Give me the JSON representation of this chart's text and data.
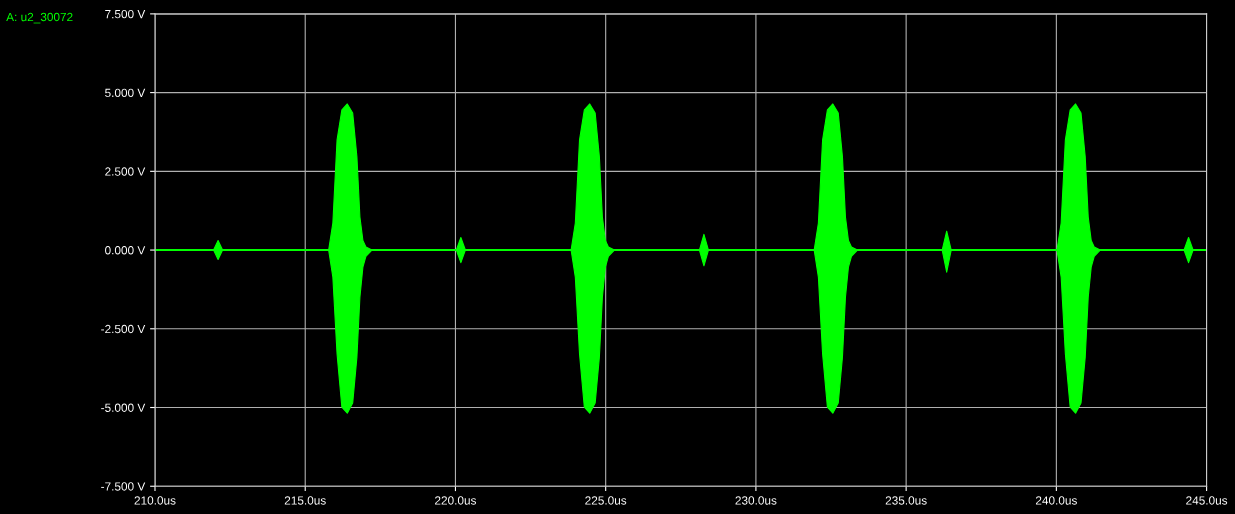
{
  "chart_data": {
    "type": "line",
    "title": "A: u2_30072",
    "x": [
      210,
      211.95,
      212.1,
      212.25,
      215.78,
      215.92,
      216.06,
      216.22,
      216.4,
      216.58,
      216.72,
      216.82,
      216.92,
      217.02,
      217.22,
      220.03,
      220.18,
      220.33,
      223.85,
      223.99,
      224.13,
      224.29,
      224.47,
      224.65,
      224.79,
      224.89,
      224.99,
      225.09,
      225.29,
      228.12,
      228.27,
      228.42,
      231.94,
      232.08,
      232.22,
      232.38,
      232.56,
      232.74,
      232.88,
      232.98,
      233.08,
      233.18,
      233.38,
      236.2,
      236.35,
      236.5,
      240.02,
      240.16,
      240.3,
      240.46,
      240.64,
      240.82,
      240.96,
      241.06,
      241.16,
      241.26,
      241.46,
      244.25,
      244.4,
      244.55,
      245
    ],
    "series": [
      {
        "color": "#00ff00",
        "values": [
          0,
          0,
          0,
          0,
          0,
          0,
          0,
          0,
          0,
          0,
          0,
          0,
          0,
          0,
          0,
          0,
          0,
          0,
          0,
          0,
          0,
          0,
          0,
          0,
          0,
          0,
          0,
          0,
          0,
          0,
          0,
          0,
          0,
          0,
          0,
          0,
          0,
          0,
          0,
          0,
          0,
          0,
          0,
          0,
          0,
          0,
          0,
          0,
          0,
          0,
          0,
          0,
          0,
          0,
          0,
          0,
          0,
          0,
          0,
          0,
          0
        ],
        "upper": [
          0,
          0,
          0.3,
          0,
          0,
          0.86,
          3.5,
          4.45,
          4.64,
          4.35,
          2.96,
          1.05,
          0.3,
          0.1,
          0,
          0,
          0.4,
          0,
          0,
          0.86,
          3.5,
          4.45,
          4.64,
          4.35,
          2.96,
          1.05,
          0.3,
          0.1,
          0,
          0,
          0.5,
          0,
          0,
          0.86,
          3.5,
          4.45,
          4.64,
          4.35,
          2.96,
          1.05,
          0.3,
          0.1,
          0,
          0,
          0.6,
          0,
          0,
          0.86,
          3.5,
          4.45,
          4.64,
          4.35,
          2.96,
          1.05,
          0.3,
          0.1,
          0,
          0,
          0.4,
          0,
          0
        ],
        "lower": [
          0,
          0,
          -0.3,
          0,
          0,
          -0.86,
          -3.3,
          -4.99,
          -5.18,
          -4.86,
          -3.4,
          -1.5,
          -0.54,
          -0.2,
          0,
          0,
          -0.4,
          0,
          0,
          -0.86,
          -3.3,
          -4.99,
          -5.18,
          -4.86,
          -3.4,
          -1.5,
          -0.54,
          -0.2,
          0,
          0,
          -0.5,
          0,
          0,
          -0.86,
          -3.3,
          -4.99,
          -5.18,
          -4.86,
          -3.4,
          -1.5,
          -0.54,
          -0.2,
          0,
          0,
          -0.7,
          0,
          0,
          -0.86,
          -3.3,
          -4.99,
          -5.18,
          -4.86,
          -3.4,
          -1.5,
          -0.54,
          -0.2,
          0,
          0,
          -0.4,
          0,
          0
        ]
      }
    ],
    "xlim": [
      210,
      245
    ],
    "xticks": [
      {
        "value": 210,
        "label": "210.0us"
      },
      {
        "value": 215,
        "label": "215.0us"
      },
      {
        "value": 220,
        "label": "220.0us"
      },
      {
        "value": 225,
        "label": "225.0us"
      },
      {
        "value": 230,
        "label": "230.0us"
      },
      {
        "value": 235,
        "label": "235.0us"
      },
      {
        "value": 240,
        "label": "240.0us"
      },
      {
        "value": 245,
        "label": "245.0us"
      }
    ],
    "ylim": [
      -7.5,
      7.5
    ],
    "yticks": [
      {
        "value": -7.5,
        "label": "-7.500 V"
      },
      {
        "value": -5,
        "label": "-5.000 V"
      },
      {
        "value": -2.5,
        "label": "-2.500 V"
      },
      {
        "value": 0,
        "label": "0.000 V"
      },
      {
        "value": 2.5,
        "label": "2.500 V"
      },
      {
        "value": 5,
        "label": "5.000 V"
      },
      {
        "value": 7.5,
        "label": "7.500 V"
      }
    ],
    "grid": true
  }
}
